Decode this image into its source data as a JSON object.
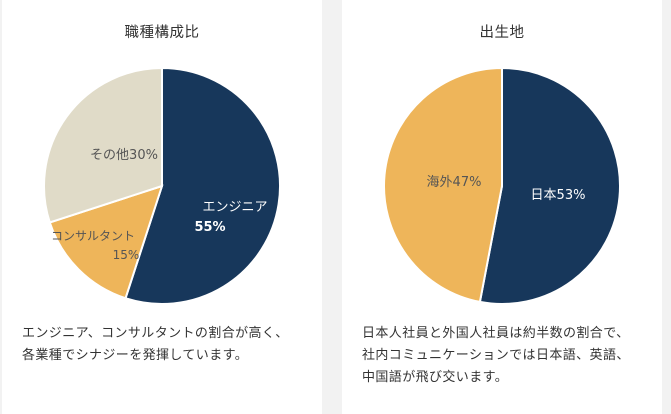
{
  "colors": {
    "navy": "#17375b",
    "gold": "#eeb55a",
    "beige": "#e0dbc8"
  },
  "chart_data": [
    {
      "type": "pie",
      "title": "職種構成比",
      "slices": [
        {
          "label": "エンジニア",
          "value": 55,
          "display": "55%",
          "color": "#17375b"
        },
        {
          "label": "コンサルタント",
          "value": 15,
          "display": "15%",
          "color": "#eeb55a"
        },
        {
          "label": "その他",
          "value": 30,
          "display": "30%",
          "color": "#e0dbc8"
        }
      ],
      "description": [
        "エンジニア、コンサルタントの割合が高く、",
        "各業種でシナジーを発揮しています。"
      ]
    },
    {
      "type": "pie",
      "title": "出生地",
      "slices": [
        {
          "label": "日本",
          "value": 53,
          "display": "53%",
          "color": "#17375b"
        },
        {
          "label": "海外",
          "value": 47,
          "display": "47%",
          "color": "#eeb55a"
        }
      ],
      "description": [
        "日本人社員と外国人社員は約半数の割合で、",
        "社内コミュニケーションでは日本語、英語、",
        "中国語が飛び交います。"
      ]
    }
  ]
}
